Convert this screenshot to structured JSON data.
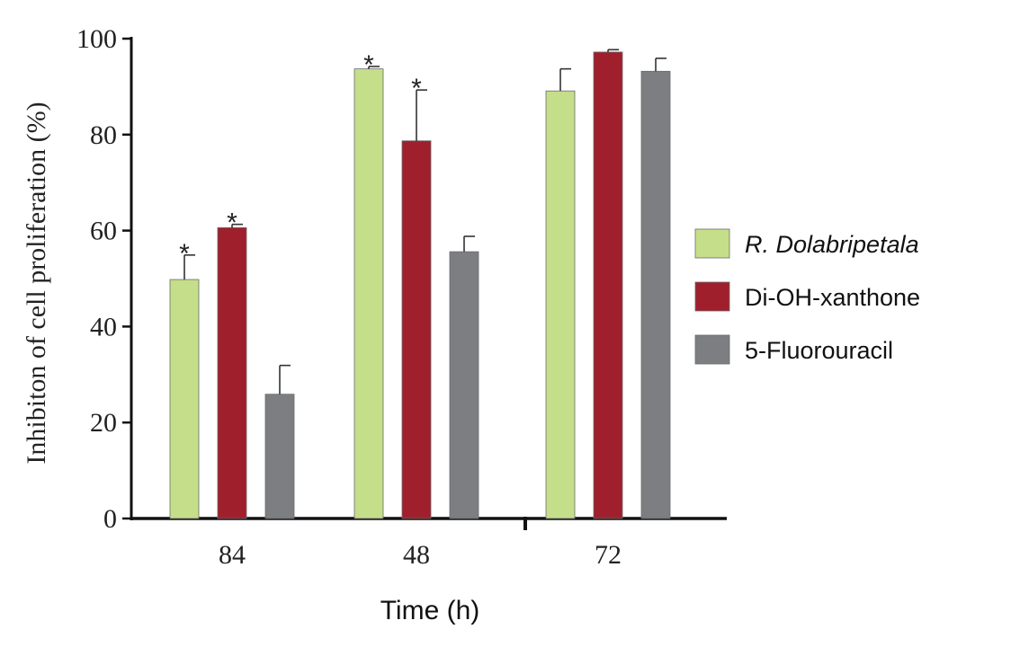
{
  "chart_data": {
    "type": "bar",
    "categories": [
      "84",
      "48",
      "72"
    ],
    "xlabel": "Time (h)",
    "ylabel": "Inhibiton of cell proliferation (%)",
    "ylim": [
      0,
      100
    ],
    "yticks": [
      "0",
      "20",
      "40",
      "60",
      "80",
      "100"
    ],
    "legend_position": "right",
    "series": [
      {
        "name": "R. Dolabripetala",
        "italic": true,
        "color": "#c5de8a",
        "values": [
          49.8,
          93.7,
          89.1
        ],
        "errors": [
          5.1,
          0.5,
          4.6
        ],
        "marks": [
          "*",
          "*",
          ""
        ]
      },
      {
        "name": "Di-OH-xanthone",
        "italic": false,
        "color": "#a01f2d",
        "values": [
          60.6,
          78.7,
          97.2
        ],
        "errors": [
          0.7,
          10.6,
          0.5
        ],
        "marks": [
          "*",
          "*",
          ""
        ]
      },
      {
        "name": "5-Fluorouracil",
        "italic": false,
        "color": "#7d7e82",
        "values": [
          25.9,
          55.6,
          93.2
        ],
        "errors": [
          6.0,
          3.2,
          2.7
        ],
        "marks": [
          "",
          "",
          ""
        ]
      }
    ]
  }
}
